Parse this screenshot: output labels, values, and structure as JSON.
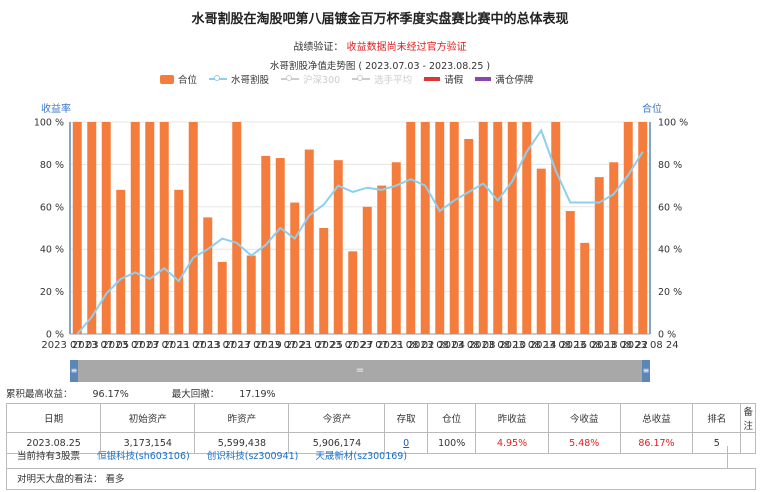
{
  "page": {
    "title": "水哥割股在淘股吧第八届镀金百万杯季度实盘赛比赛中的总体表现",
    "verify_label": "战绩验证：",
    "verify_text": "收益数据尚未经过官方验证"
  },
  "chart_data": {
    "type": "bar",
    "title": "水哥割股净值走势图 ( 2023.07.03 - 2023.08.25 )",
    "legend": [
      {
        "name": "合位",
        "color": "#f47c3c",
        "kind": "bar",
        "active": true
      },
      {
        "name": "水哥割股",
        "color": "#8ecfee",
        "kind": "line",
        "active": true
      },
      {
        "name": "沪深300",
        "color": "#cccccc",
        "kind": "line",
        "active": false
      },
      {
        "name": "选手平均",
        "color": "#cccccc",
        "kind": "line",
        "active": false
      },
      {
        "name": "请假",
        "color": "#d9383a",
        "kind": "flat",
        "active": true
      },
      {
        "name": "满仓停牌",
        "color": "#8e44ad",
        "kind": "flat",
        "active": true
      }
    ],
    "ylabel_left": "收益率",
    "ylabel_right": "合位",
    "ylim_left": [
      0,
      100
    ],
    "ylim_right": [
      0,
      100
    ],
    "yticks_left": [
      "0 %",
      "20 %",
      "40 %",
      "60 %",
      "80 %",
      "100 %"
    ],
    "yticks_right": [
      "0 %",
      "20 %",
      "40 %",
      "60 %",
      "80 %",
      "100 %"
    ],
    "xtick_labels": [
      "2023 07 03",
      "2023 07 05",
      "2023 07 07",
      "2023 07 11",
      "2023 07 13",
      "2023 07 17",
      "2023 07 19",
      "2023 07 21",
      "2023 07 25",
      "2023 07 27",
      "2023 07 31",
      "2023 08 02",
      "2023 08 04",
      "2023 08 08",
      "2023 08 10",
      "2023 08 14",
      "2023 08 16",
      "2023 08 18",
      "2023 08 22",
      "2023 08 24"
    ],
    "position_series": {
      "name": "合位",
      "values": [
        100,
        100,
        100,
        68,
        100,
        100,
        100,
        68,
        100,
        55,
        34,
        100,
        37,
        84,
        83,
        62,
        87,
        50,
        82,
        39,
        60,
        70,
        81,
        100,
        100,
        100,
        100,
        92,
        100,
        100,
        100,
        100,
        78,
        100,
        58,
        43,
        74,
        81,
        100,
        100
      ]
    },
    "return_series": {
      "name": "水哥割股",
      "values": [
        0,
        8,
        19,
        26,
        29,
        26,
        31,
        25,
        36,
        40,
        45,
        43,
        37,
        42,
        50,
        45,
        56,
        61,
        70,
        67,
        69,
        68,
        70,
        73,
        70,
        58,
        63,
        67,
        71,
        63,
        72,
        86,
        96,
        77,
        62,
        62,
        62,
        66,
        75,
        86
      ]
    }
  },
  "summary": {
    "max_return_label": "累积最高收益：",
    "max_return": "96.17%",
    "max_drawdown_label": "最大回撤：",
    "max_drawdown": "17.19%"
  },
  "table": {
    "headers": [
      "日期",
      "初始资产",
      "昨资产",
      "今资产",
      "存取",
      "仓位",
      "昨收益",
      "今收益",
      "总收益",
      "排名",
      "备注"
    ],
    "row": {
      "date": "2023.08.25",
      "initial": "3,173,154",
      "yesterday": "5,599,438",
      "today": "5,906,174",
      "deposit": "0",
      "position": "100%",
      "yesterday_return": "4.95%",
      "today_return": "5.48%",
      "total_return": "86.17%",
      "rank": "5",
      "note": ""
    }
  },
  "holdings": {
    "label": "当前持有3股票",
    "stocks": [
      "恒银科技(sh603106)",
      "创识科技(sz300941)",
      "天晟新材(sz300169)"
    ]
  },
  "opinion": {
    "label": "对明天大盘的看法：",
    "value": "看多"
  },
  "scrollbar": {
    "center_glyph": "="
  }
}
